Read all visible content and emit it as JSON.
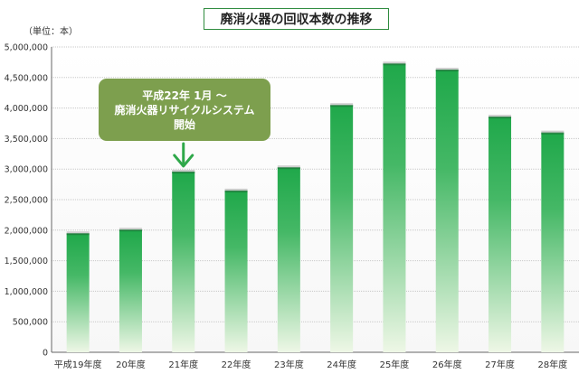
{
  "chart_data": {
    "type": "bar",
    "title": "廃消火器の回収本数の推移",
    "unit_label": "（単位：本）",
    "categories": [
      "平成19年度",
      "20年度",
      "21年度",
      "22年度",
      "23年度",
      "24年度",
      "25年度",
      "26年度",
      "27年度",
      "28年度"
    ],
    "values": [
      1950000,
      2010000,
      2960000,
      2650000,
      3030000,
      4050000,
      4730000,
      4630000,
      3860000,
      3600000
    ],
    "ylim": [
      0,
      5000000
    ],
    "yticks": [
      "0",
      "500,000",
      "1,000,000",
      "1,500,000",
      "2,000,000",
      "2,500,000",
      "3,000,000",
      "3,500,000",
      "4,000,000",
      "4,500,000",
      "5,000,000"
    ],
    "grid": true,
    "annotation": {
      "lines": [
        "平成22年 1月 ～",
        "廃消火器リサイクルシステム",
        "開始"
      ],
      "target_category": "21年度"
    },
    "colors": {
      "bar_top": "#1fa84a",
      "bar_bottom": "#eef7e6",
      "frame": "#2e8b3e",
      "callout_bg": "#7d9f4e",
      "arrow": "#2fa84a",
      "grid": "#c8c8c8"
    }
  }
}
